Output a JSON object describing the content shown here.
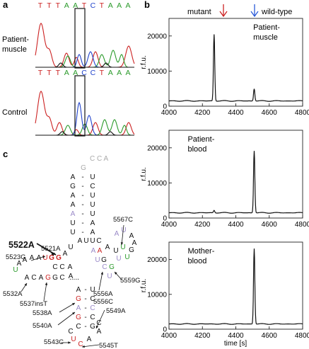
{
  "panels": {
    "a": {
      "letter": "a",
      "bases": [
        "T",
        "T",
        "T",
        "A",
        "A",
        "T",
        "C",
        "T",
        "A",
        "A",
        "A"
      ],
      "base_colors": [
        "#cc2222",
        "#cc2222",
        "#cc2222",
        "#2a9a2a",
        "#2a9a2a",
        "#cc2222",
        "#2244cc",
        "#cc2222",
        "#2a9a2a",
        "#2a9a2a",
        "#2a9a2a"
      ],
      "label_patient_line1": "Patient-",
      "label_patient_line2": "muscle",
      "label_control": "Control"
    },
    "b": {
      "letter": "b",
      "mutant_label": "mutant",
      "wildtype_label": "wild-type",
      "mutant_arrow_color": "#cc2222",
      "wildtype_arrow_color": "#2a5ad8",
      "ylabel": "r.f.u.",
      "xlabel": "time [s]"
    },
    "c": {
      "letter": "c",
      "highlight_mutation": "5522A",
      "top_label": "C C A",
      "mutations": [
        "5567C",
        "5523G",
        "5521A",
        "5559G",
        "5532A",
        "5537insT",
        "5556A",
        "5556C",
        "5538A",
        "5540A",
        "5549A",
        "5543C",
        "5545T"
      ]
    }
  },
  "chart_data": [
    {
      "type": "line",
      "title": "",
      "annotation": "Patient-muscle",
      "xlabel": "",
      "ylabel": "r.f.u.",
      "xlim": [
        4000,
        4800
      ],
      "ylim": [
        0,
        25000
      ],
      "xticks": [
        4000,
        4200,
        4400,
        4600,
        4800
      ],
      "yticks": [
        0,
        10000,
        20000
      ],
      "peaks": [
        {
          "x": 4270,
          "y": 20500,
          "label": "mutant"
        },
        {
          "x": 4510,
          "y": 5000,
          "label": "wild-type"
        }
      ],
      "baseline": 1500
    },
    {
      "type": "line",
      "title": "",
      "annotation": "Patient-blood",
      "xlabel": "",
      "ylabel": "r.f.u.",
      "xlim": [
        4000,
        4800
      ],
      "ylim": [
        0,
        25000
      ],
      "xticks": [
        4000,
        4200,
        4400,
        4600,
        4800
      ],
      "yticks": [
        0,
        10000,
        20000
      ],
      "peaks": [
        {
          "x": 4270,
          "y": 2200,
          "label": "mutant"
        },
        {
          "x": 4510,
          "y": 19200,
          "label": "wild-type"
        }
      ],
      "baseline": 1500
    },
    {
      "type": "line",
      "title": "",
      "annotation": "Mother-blood",
      "xlabel": "time [s]",
      "ylabel": "r.f.u.",
      "xlim": [
        4000,
        4800
      ],
      "ylim": [
        0,
        25000
      ],
      "xticks": [
        4000,
        4200,
        4400,
        4600,
        4800
      ],
      "yticks": [
        0,
        10000,
        20000
      ],
      "peaks": [
        {
          "x": 4510,
          "y": 23200,
          "label": "wild-type"
        }
      ],
      "baseline": 1500
    }
  ]
}
